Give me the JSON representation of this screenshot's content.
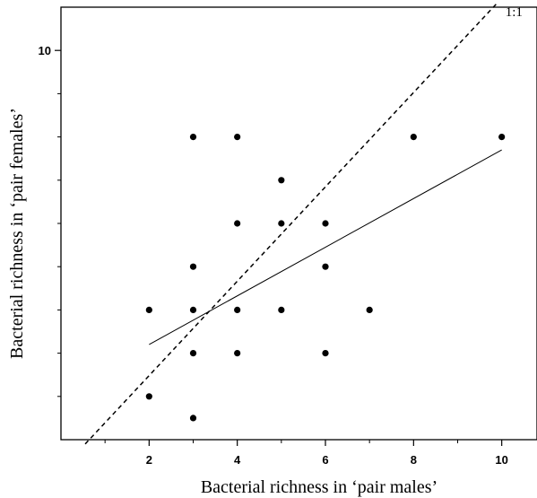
{
  "chart_data": {
    "type": "scatter",
    "xlabel": "Bacterial richness in ‘pair males’",
    "ylabel": "Bacterial richness in ‘pair females’",
    "xlim": [
      0,
      10.8
    ],
    "ylim": [
      1,
      11
    ],
    "x_ticks": [
      {
        "value": 2,
        "label": "2"
      },
      {
        "value": 4,
        "label": "4"
      },
      {
        "value": 6,
        "label": "6"
      },
      {
        "value": 8,
        "label": "8"
      },
      {
        "value": 10,
        "label": "10"
      }
    ],
    "x_minor_ticks": [
      1,
      3,
      5,
      7,
      9
    ],
    "y_ticks": [
      {
        "value": 10,
        "label": "10"
      }
    ],
    "y_minor_ticks": [
      2,
      3,
      4,
      5,
      6,
      7,
      8,
      9
    ],
    "series": [
      {
        "points": [
          {
            "x": 2,
            "y": 2
          },
          {
            "x": 2,
            "y": 4
          },
          {
            "x": 3,
            "y": 1.5
          },
          {
            "x": 3,
            "y": 3
          },
          {
            "x": 3,
            "y": 4
          },
          {
            "x": 3,
            "y": 5
          },
          {
            "x": 3,
            "y": 8
          },
          {
            "x": 4,
            "y": 3
          },
          {
            "x": 4,
            "y": 4
          },
          {
            "x": 4,
            "y": 6
          },
          {
            "x": 4,
            "y": 8
          },
          {
            "x": 5,
            "y": 4
          },
          {
            "x": 5,
            "y": 6
          },
          {
            "x": 5,
            "y": 7
          },
          {
            "x": 6,
            "y": 3
          },
          {
            "x": 6,
            "y": 5
          },
          {
            "x": 6,
            "y": 6
          },
          {
            "x": 7,
            "y": 4
          },
          {
            "x": 8,
            "y": 8
          },
          {
            "x": 10,
            "y": 8
          }
        ]
      }
    ],
    "reference_lines": [
      {
        "style": "dashed",
        "label": "1:1",
        "x": [
          0.55,
          9.9
        ],
        "y": [
          0.9,
          11.1
        ]
      },
      {
        "style": "solid",
        "label": "",
        "x": [
          2,
          10
        ],
        "y": [
          3.2,
          7.7
        ]
      }
    ],
    "grid": false,
    "legend": "none"
  }
}
